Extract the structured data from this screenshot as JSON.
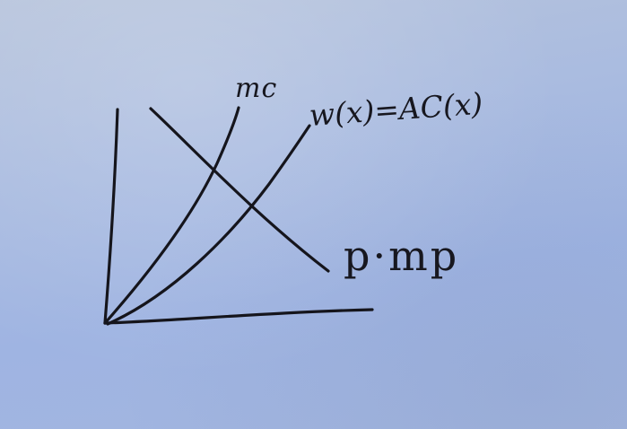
{
  "diagram": {
    "curves": [
      {
        "id": "mc",
        "label": "mc"
      },
      {
        "id": "wx",
        "label": "w(x)=AC(x)"
      },
      {
        "id": "pmp",
        "label": "p·mp"
      }
    ]
  }
}
